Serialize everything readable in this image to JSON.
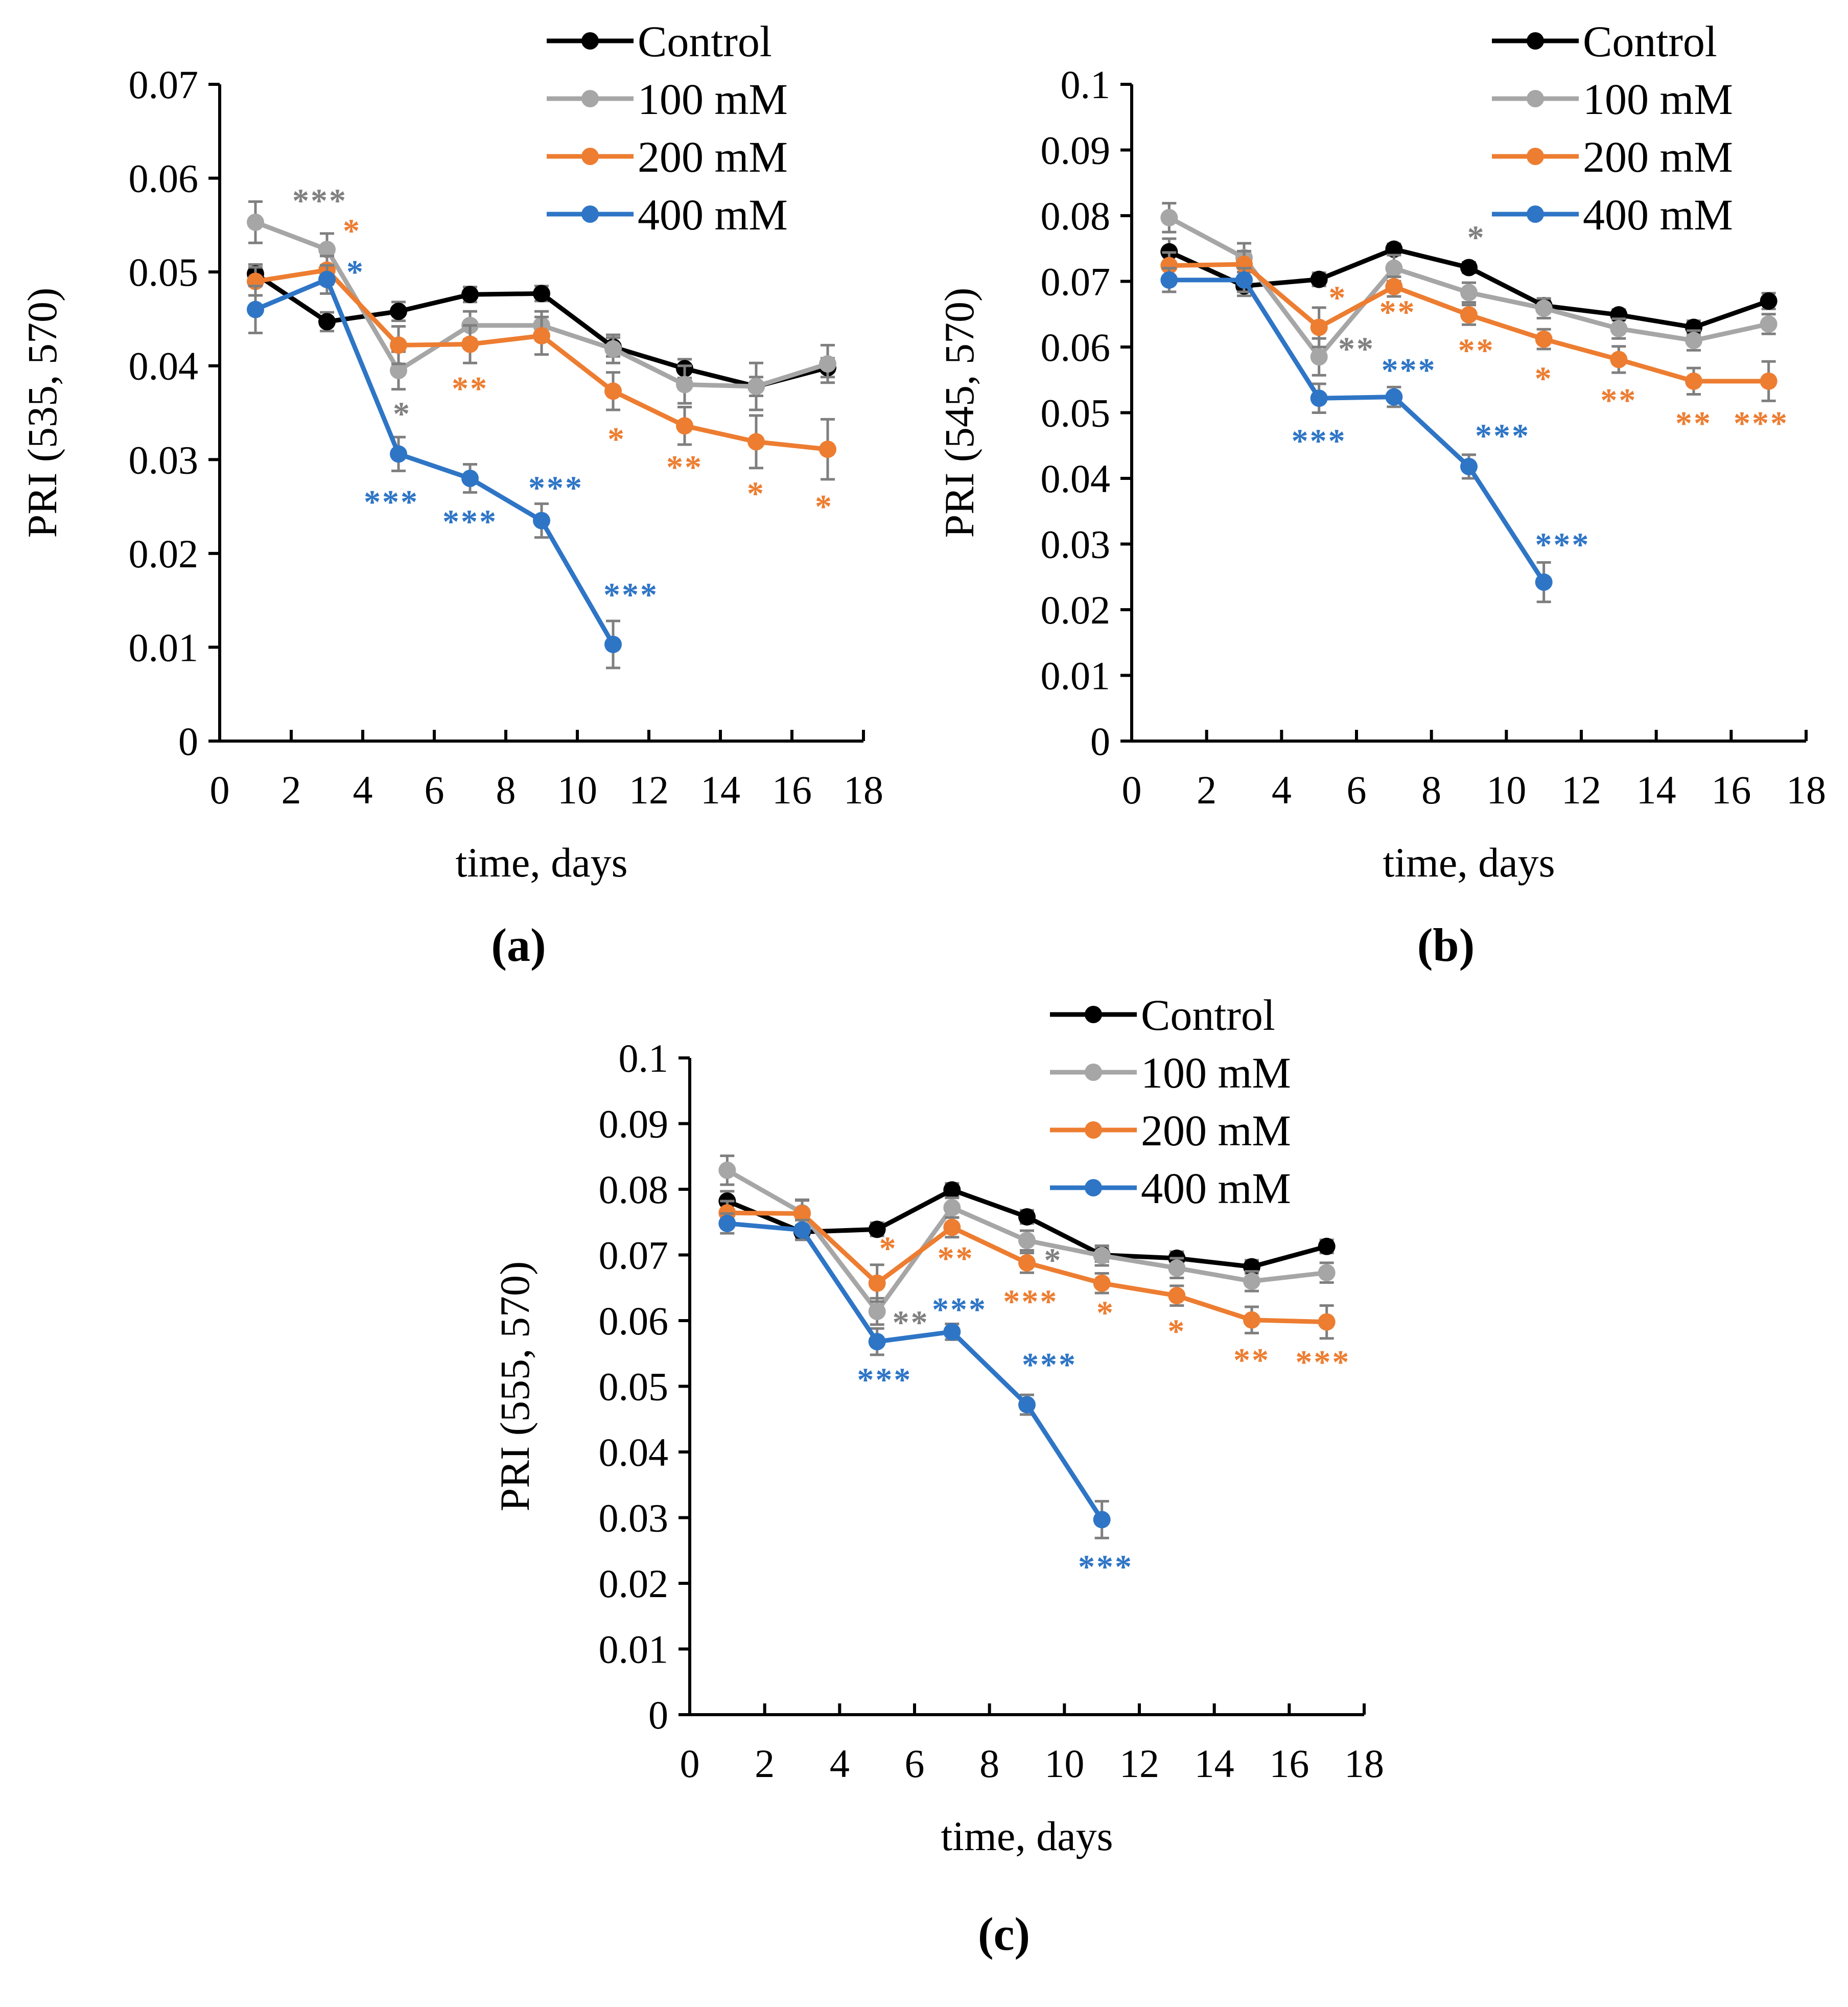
{
  "figure": {
    "series_names": [
      "Control",
      "100 mM",
      "200 mM",
      "400 mM"
    ],
    "series_colors": [
      "#000000",
      "#a6a6a6",
      "#ed7d31",
      "#2e75c6"
    ]
  },
  "chart_data": [
    {
      "id": "a",
      "type": "line",
      "panel_label": "(a)",
      "xlabel": "time, days",
      "ylabel": "PRI (535, 570)",
      "xlim": [
        0,
        18
      ],
      "ylim": [
        0,
        0.07
      ],
      "x_ticks": [
        0,
        2,
        4,
        6,
        8,
        10,
        12,
        14,
        16,
        18
      ],
      "x_tick_labels": [
        "0",
        "2",
        "4",
        "6",
        "8",
        "10",
        "12",
        "14",
        "16",
        "18"
      ],
      "y_ticks": [
        0,
        0.01,
        0.02,
        0.03,
        0.04,
        0.05,
        0.06,
        0.07
      ],
      "y_tick_labels": [
        "0",
        "0.01",
        "0.02",
        "0.03",
        "0.04",
        "0.05",
        "0.06",
        "0.07"
      ],
      "legend_position": "top-right",
      "series": [
        {
          "name": "Control",
          "color": "#000000",
          "x": [
            1,
            3,
            5,
            7,
            9,
            11,
            13,
            15,
            17
          ],
          "y": [
            0.0498,
            0.0447,
            0.0458,
            0.0476,
            0.0477,
            0.042,
            0.0397,
            0.0378,
            0.0398
          ],
          "err": [
            0.001,
            0.001,
            0.001,
            0.0008,
            0.0008,
            0.001,
            0.001,
            0.001,
            0.001
          ]
        },
        {
          "name": "100 mM",
          "color": "#a6a6a6",
          "x": [
            1,
            3,
            5,
            7,
            9,
            11,
            13,
            15,
            17
          ],
          "y": [
            0.0553,
            0.0524,
            0.0395,
            0.0443,
            0.0443,
            0.0418,
            0.038,
            0.0378,
            0.0402
          ],
          "err": [
            0.0022,
            0.0017,
            0.002,
            0.0015,
            0.0015,
            0.0015,
            0.002,
            0.0025,
            0.002
          ]
        },
        {
          "name": "200 mM",
          "color": "#ed7d31",
          "x": [
            1,
            3,
            5,
            7,
            9,
            11,
            13,
            15,
            17
          ],
          "y": [
            0.049,
            0.0502,
            0.0422,
            0.0423,
            0.0432,
            0.0373,
            0.0336,
            0.0319,
            0.0311
          ],
          "err": [
            0.0015,
            0.0015,
            0.002,
            0.002,
            0.002,
            0.002,
            0.002,
            0.0028,
            0.0032
          ]
        },
        {
          "name": "400 mM",
          "color": "#2e75c6",
          "x": [
            1,
            3,
            5,
            7,
            9,
            11
          ],
          "y": [
            0.046,
            0.0492,
            0.0306,
            0.028,
            0.0235,
            0.0103
          ],
          "err": [
            0.0025,
            0.0015,
            0.0018,
            0.0015,
            0.0018,
            0.0025
          ]
        }
      ],
      "annotations": [
        {
          "text": "***",
          "color": "#808080",
          "x": 2.8,
          "y": 0.0564
        },
        {
          "text": "*",
          "color": "#ed7d31",
          "x": 3.7,
          "y": 0.0532
        },
        {
          "text": "*",
          "color": "#2e75c6",
          "x": 3.8,
          "y": 0.0488
        },
        {
          "text": "*",
          "color": "#808080",
          "x": 5.1,
          "y": 0.0337
        },
        {
          "text": "**",
          "color": "#ed7d31",
          "x": 7.0,
          "y": 0.0364
        },
        {
          "text": "*",
          "color": "#ed7d31",
          "x": 11.1,
          "y": 0.031
        },
        {
          "text": "**",
          "color": "#ed7d31",
          "x": 13.0,
          "y": 0.028
        },
        {
          "text": "*",
          "color": "#ed7d31",
          "x": 15.0,
          "y": 0.0252
        },
        {
          "text": "*",
          "color": "#ed7d31",
          "x": 16.9,
          "y": 0.0238
        },
        {
          "text": "***",
          "color": "#2e75c6",
          "x": 4.8,
          "y": 0.0243
        },
        {
          "text": "***",
          "color": "#2e75c6",
          "x": 7.0,
          "y": 0.0222
        },
        {
          "text": "***",
          "color": "#2e75c6",
          "x": 9.4,
          "y": 0.0258
        },
        {
          "text": "***",
          "color": "#2e75c6",
          "x": 11.5,
          "y": 0.0144
        }
      ]
    },
    {
      "id": "b",
      "type": "line",
      "panel_label": "(b)",
      "xlabel": "time, days",
      "ylabel": "PRI (545, 570)",
      "xlim": [
        0,
        18
      ],
      "ylim": [
        0,
        0.1
      ],
      "x_ticks": [
        0,
        2,
        4,
        6,
        8,
        10,
        12,
        14,
        16,
        18
      ],
      "x_tick_labels": [
        "0",
        "2",
        "4",
        "6",
        "8",
        "10",
        "12",
        "14",
        "16",
        "18"
      ],
      "y_ticks": [
        0,
        0.01,
        0.02,
        0.03,
        0.04,
        0.05,
        0.06,
        0.07,
        0.08,
        0.09,
        0.1
      ],
      "y_tick_labels": [
        "0",
        "0.01",
        "0.02",
        "0.03",
        "0.04",
        "0.05",
        "0.06",
        "0.07",
        "0.08",
        "0.09",
        "0.1"
      ],
      "legend_position": "top-right",
      "series": [
        {
          "name": "Control",
          "color": "#000000",
          "x": [
            1,
            3,
            5,
            7,
            9,
            11,
            13,
            15,
            17
          ],
          "y": [
            0.0745,
            0.0693,
            0.0703,
            0.0749,
            0.0721,
            0.0663,
            0.0649,
            0.063,
            0.067
          ],
          "err": [
            0.002,
            0.0015,
            0.001,
            0.0008,
            0.0008,
            0.001,
            0.0008,
            0.001,
            0.0012
          ]
        },
        {
          "name": "100 mM",
          "color": "#a6a6a6",
          "x": [
            1,
            3,
            5,
            7,
            9,
            11,
            13,
            15,
            17
          ],
          "y": [
            0.0797,
            0.0736,
            0.0585,
            0.072,
            0.0683,
            0.0659,
            0.0628,
            0.061,
            0.0635
          ],
          "err": [
            0.0022,
            0.0022,
            0.0028,
            0.002,
            0.0015,
            0.0015,
            0.0015,
            0.0015,
            0.0015
          ]
        },
        {
          "name": "200 mM",
          "color": "#ed7d31",
          "x": [
            1,
            3,
            5,
            7,
            9,
            11,
            13,
            15,
            17
          ],
          "y": [
            0.0724,
            0.0726,
            0.063,
            0.0692,
            0.0649,
            0.0612,
            0.0581,
            0.0548,
            0.0548
          ],
          "err": [
            0.002,
            0.002,
            0.003,
            0.0015,
            0.0015,
            0.0015,
            0.002,
            0.002,
            0.003
          ]
        },
        {
          "name": "400 mM",
          "color": "#2e75c6",
          "x": [
            1,
            3,
            5,
            7,
            9,
            11
          ],
          "y": [
            0.0702,
            0.0702,
            0.0522,
            0.0524,
            0.0418,
            0.0242
          ],
          "err": [
            0.0018,
            0.0018,
            0.0022,
            0.0015,
            0.0018,
            0.003
          ]
        }
      ],
      "annotations": [
        {
          "text": "*",
          "color": "#808080",
          "x": 9.2,
          "y": 0.075
        },
        {
          "text": "*",
          "color": "#ed7d31",
          "x": 5.5,
          "y": 0.0658
        },
        {
          "text": "**",
          "color": "#808080",
          "x": 6.0,
          "y": 0.058
        },
        {
          "text": "**",
          "color": "#ed7d31",
          "x": 7.1,
          "y": 0.0636
        },
        {
          "text": "**",
          "color": "#ed7d31",
          "x": 9.2,
          "y": 0.0578
        },
        {
          "text": "*",
          "color": "#ed7d31",
          "x": 11.0,
          "y": 0.0535
        },
        {
          "text": "**",
          "color": "#ed7d31",
          "x": 13.0,
          "y": 0.0502
        },
        {
          "text": "**",
          "color": "#ed7d31",
          "x": 15.0,
          "y": 0.0467
        },
        {
          "text": "***",
          "color": "#ed7d31",
          "x": 16.8,
          "y": 0.0467
        },
        {
          "text": "***",
          "color": "#2e75c6",
          "x": 7.4,
          "y": 0.0548
        },
        {
          "text": "***",
          "color": "#2e75c6",
          "x": 5.0,
          "y": 0.044
        },
        {
          "text": "***",
          "color": "#2e75c6",
          "x": 9.9,
          "y": 0.0448
        },
        {
          "text": "***",
          "color": "#2e75c6",
          "x": 11.5,
          "y": 0.0282
        }
      ]
    },
    {
      "id": "c",
      "type": "line",
      "panel_label": "(c)",
      "xlabel": "time, days",
      "ylabel": "PRI (555, 570)",
      "xlim": [
        0,
        18
      ],
      "ylim": [
        0,
        0.1
      ],
      "x_ticks": [
        0,
        2,
        4,
        6,
        8,
        10,
        12,
        14,
        16,
        18
      ],
      "x_tick_labels": [
        "0",
        "2",
        "4",
        "6",
        "8",
        "10",
        "12",
        "14",
        "16",
        "18"
      ],
      "y_ticks": [
        0,
        0.01,
        0.02,
        0.03,
        0.04,
        0.05,
        0.06,
        0.07,
        0.08,
        0.09,
        0.1
      ],
      "y_tick_labels": [
        "0",
        "0.01",
        "0.02",
        "0.03",
        "0.04",
        "0.05",
        "0.06",
        "0.07",
        "0.08",
        "0.09",
        "0.1"
      ],
      "legend_position": "top-right",
      "series": [
        {
          "name": "Control",
          "color": "#000000",
          "x": [
            1,
            3,
            5,
            7,
            9,
            11,
            13,
            15,
            17
          ],
          "y": [
            0.0782,
            0.0735,
            0.0739,
            0.0799,
            0.0758,
            0.07,
            0.0695,
            0.0682,
            0.0713
          ],
          "err": [
            0.0015,
            0.001,
            0.001,
            0.001,
            0.001,
            0.001,
            0.001,
            0.001,
            0.001
          ]
        },
        {
          "name": "100 mM",
          "color": "#a6a6a6",
          "x": [
            1,
            3,
            5,
            7,
            9,
            11,
            13,
            15,
            17
          ],
          "y": [
            0.0829,
            0.0764,
            0.0614,
            0.0772,
            0.0722,
            0.0699,
            0.068,
            0.066,
            0.0673
          ],
          "err": [
            0.0022,
            0.002,
            0.002,
            0.0015,
            0.0015,
            0.0015,
            0.0015,
            0.0015,
            0.0015
          ]
        },
        {
          "name": "200 mM",
          "color": "#ed7d31",
          "x": [
            1,
            3,
            5,
            7,
            9,
            11,
            13,
            15,
            17
          ],
          "y": [
            0.0764,
            0.0763,
            0.0657,
            0.0742,
            0.0688,
            0.0657,
            0.0638,
            0.0601,
            0.0598
          ],
          "err": [
            0.0018,
            0.002,
            0.0028,
            0.0015,
            0.0015,
            0.0015,
            0.0015,
            0.002,
            0.0025
          ]
        },
        {
          "name": "400 mM",
          "color": "#2e75c6",
          "x": [
            1,
            3,
            5,
            7,
            9,
            11
          ],
          "y": [
            0.0748,
            0.0738,
            0.0568,
            0.0583,
            0.0472,
            0.0297
          ],
          "err": [
            0.0015,
            0.0015,
            0.002,
            0.0012,
            0.0015,
            0.0028
          ]
        }
      ],
      "annotations": [
        {
          "text": "*",
          "color": "#ed7d31",
          "x": 5.3,
          "y": 0.0693
        },
        {
          "text": "**",
          "color": "#808080",
          "x": 5.9,
          "y": 0.058
        },
        {
          "text": "***",
          "color": "#2e75c6",
          "x": 7.2,
          "y": 0.06
        },
        {
          "text": "**",
          "color": "#ed7d31",
          "x": 7.1,
          "y": 0.0678
        },
        {
          "text": "*",
          "color": "#808080",
          "x": 9.7,
          "y": 0.0675
        },
        {
          "text": "***",
          "color": "#ed7d31",
          "x": 9.1,
          "y": 0.0612
        },
        {
          "text": "*",
          "color": "#ed7d31",
          "x": 11.1,
          "y": 0.0595
        },
        {
          "text": "*",
          "color": "#ed7d31",
          "x": 13.0,
          "y": 0.0567
        },
        {
          "text": "**",
          "color": "#ed7d31",
          "x": 15.0,
          "y": 0.0523
        },
        {
          "text": "***",
          "color": "#ed7d31",
          "x": 16.9,
          "y": 0.052
        },
        {
          "text": "***",
          "color": "#2e75c6",
          "x": 5.2,
          "y": 0.0493
        },
        {
          "text": "***",
          "color": "#2e75c6",
          "x": 9.6,
          "y": 0.0516
        },
        {
          "text": "***",
          "color": "#2e75c6",
          "x": 11.1,
          "y": 0.0208
        }
      ]
    }
  ]
}
